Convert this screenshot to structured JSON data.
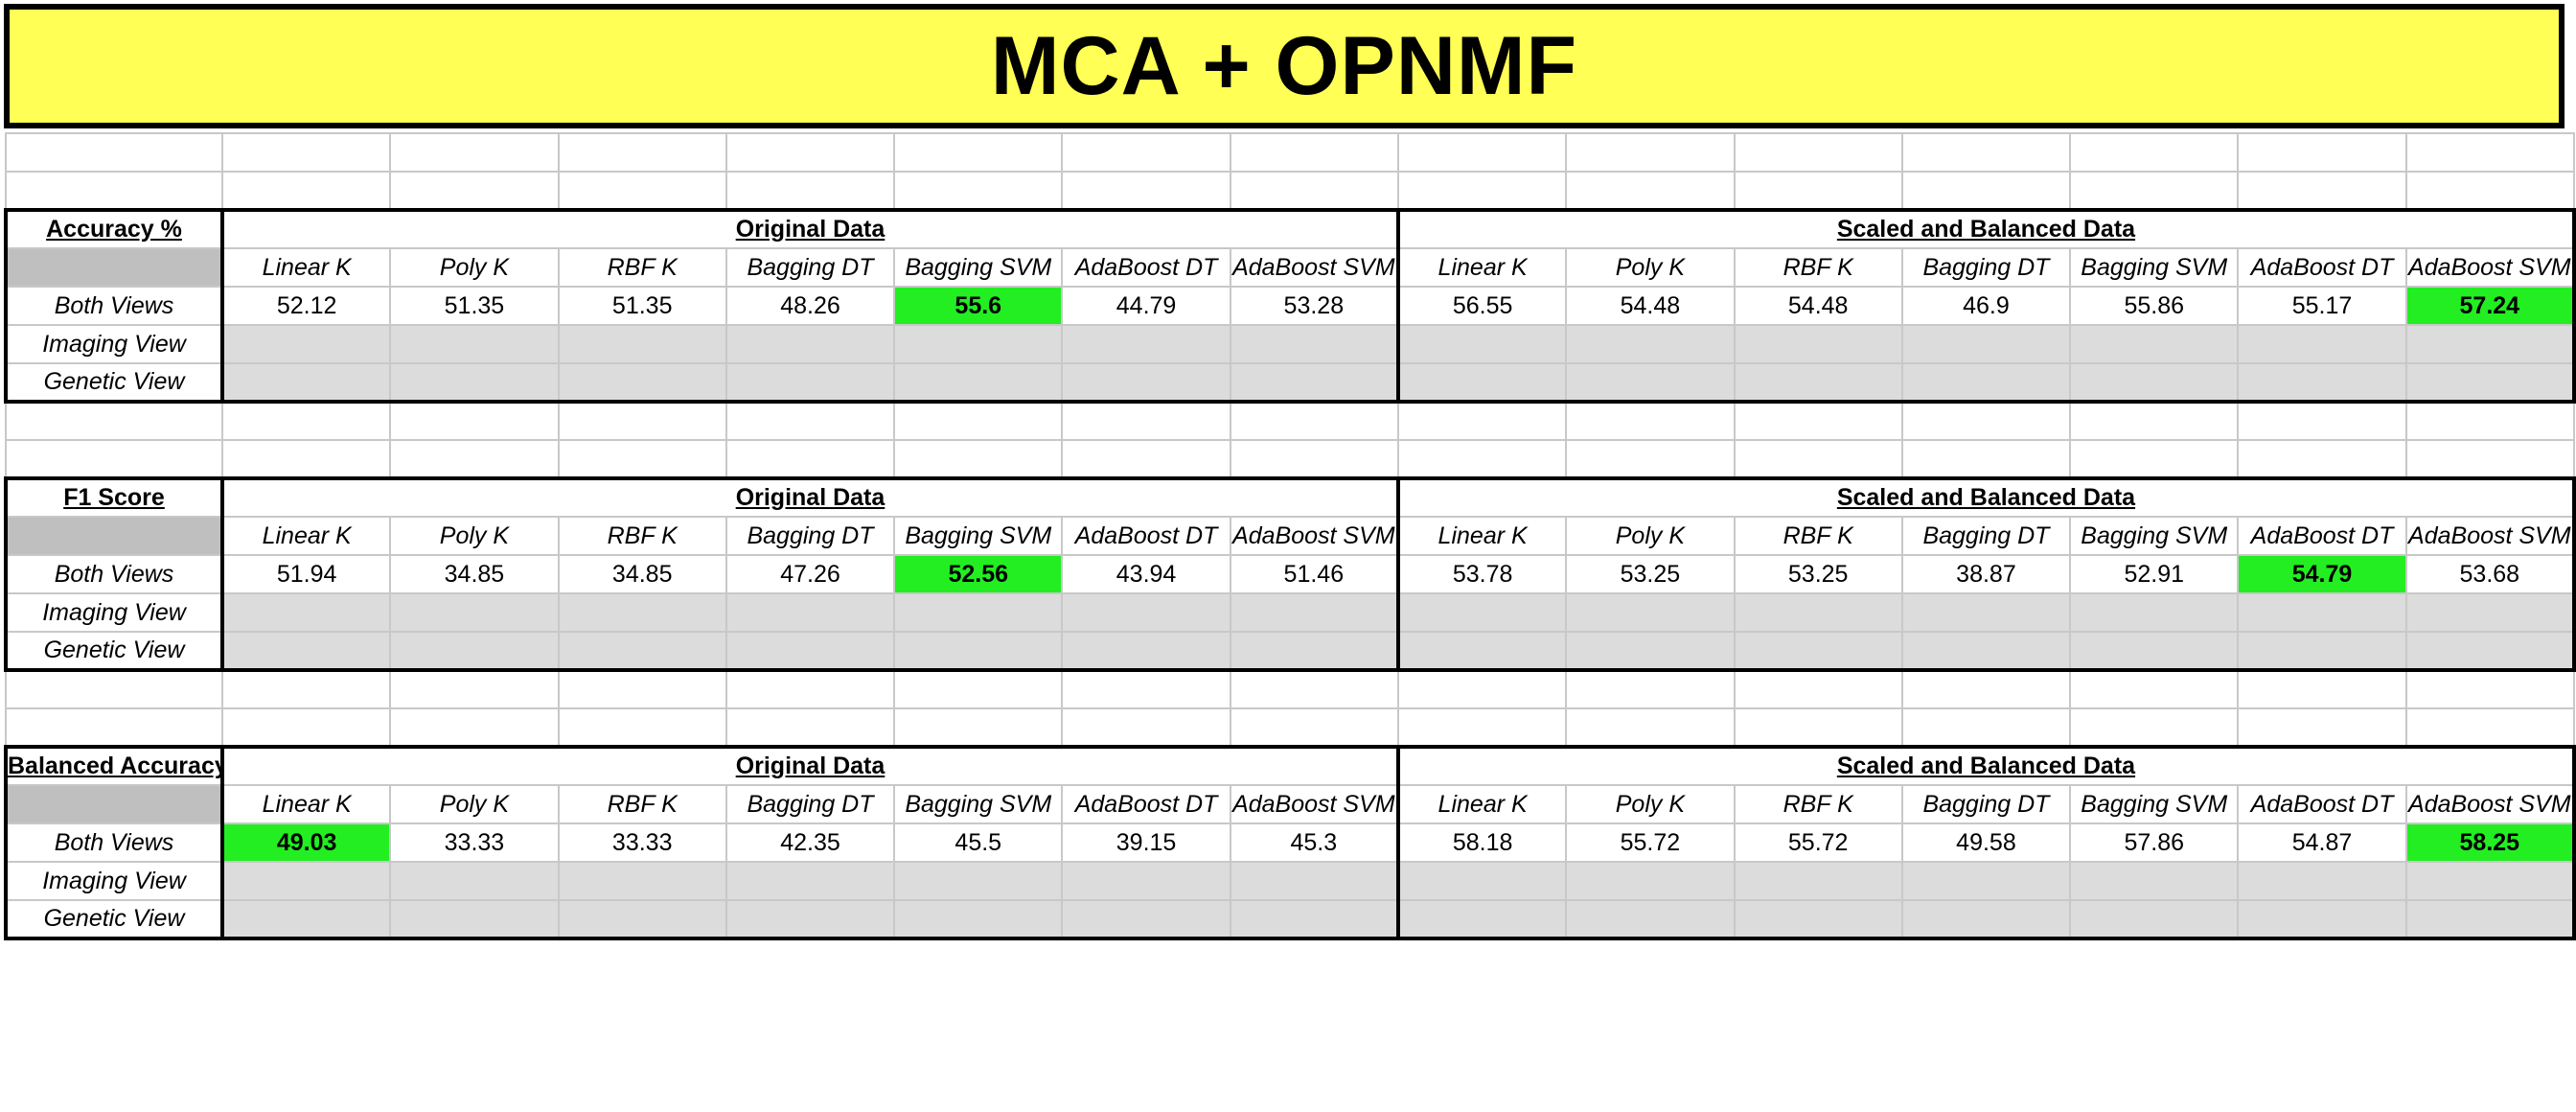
{
  "title": "MCA + OPNMF",
  "group_labels": [
    "Original Data",
    "Scaled and Balanced Data"
  ],
  "model_headers": [
    "Linear K",
    "Poly K",
    "RBF K",
    "Bagging DT",
    "Bagging SVM",
    "AdaBoost DT",
    "AdaBoost SVM",
    "Linear K",
    "Poly K",
    "RBF K",
    "Bagging DT",
    "Bagging SVM",
    "AdaBoost DT",
    "AdaBoost SVM"
  ],
  "view_labels": [
    "Both Views",
    "Imaging View",
    "Genetic View"
  ],
  "highlight_color": "#22ee22",
  "tables": [
    {
      "metric": "Accuracy %",
      "both_views": [
        "52.12",
        "51.35",
        "51.35",
        "48.26",
        "55.6",
        "44.79",
        "53.28",
        "56.55",
        "54.48",
        "54.48",
        "46.9",
        "55.86",
        "55.17",
        "57.24"
      ],
      "best_columns": [
        4,
        13
      ]
    },
    {
      "metric": "F1 Score",
      "both_views": [
        "51.94",
        "34.85",
        "34.85",
        "47.26",
        "52.56",
        "43.94",
        "51.46",
        "53.78",
        "53.25",
        "53.25",
        "38.87",
        "52.91",
        "54.79",
        "53.68"
      ],
      "best_columns": [
        4,
        12
      ]
    },
    {
      "metric": "Balanced Accuracy",
      "both_views": [
        "49.03",
        "33.33",
        "33.33",
        "42.35",
        "45.5",
        "39.15",
        "45.3",
        "58.18",
        "55.72",
        "55.72",
        "49.58",
        "57.86",
        "54.87",
        "58.25"
      ],
      "best_columns": [
        0,
        13
      ]
    }
  ]
}
